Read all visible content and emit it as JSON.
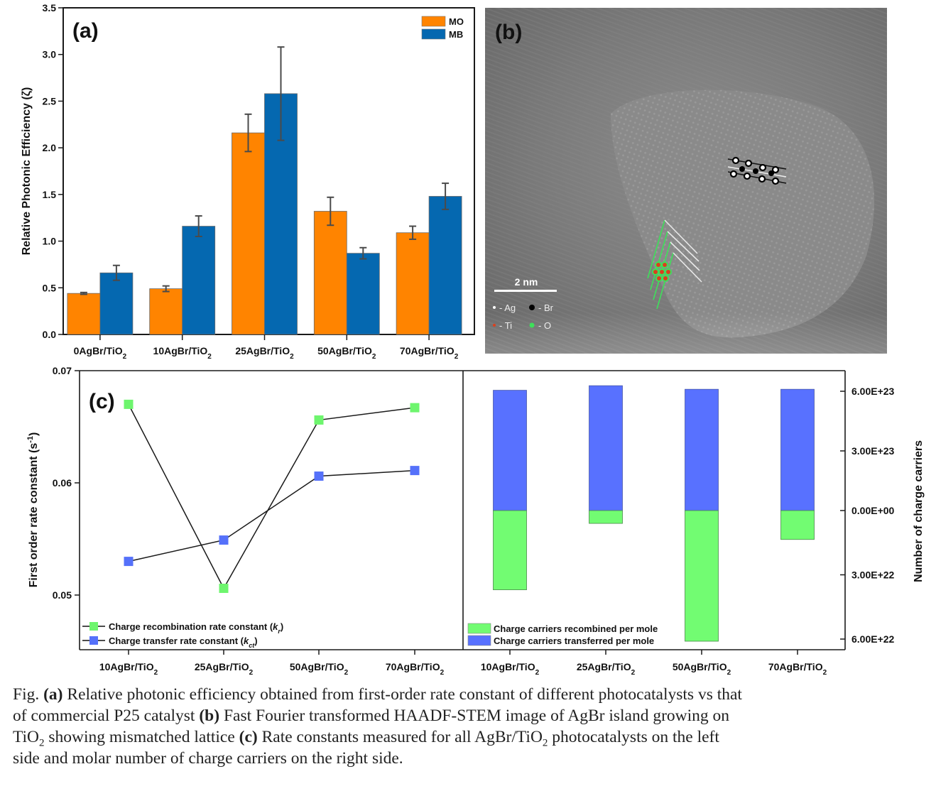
{
  "figure": {
    "panel_a_label": "(a)",
    "panel_b_label": "(b)",
    "panel_c_label": "(c)"
  },
  "panel_b": {
    "description": "Fast Fourier transformed HAADF-STEM image of AgBr island on TiO2",
    "scale_bar_label": "2 nm",
    "legend": [
      {
        "symbol": "small white dot",
        "label": "- Ag",
        "color": "#ffffff"
      },
      {
        "symbol": "black dot",
        "label": "- Br",
        "color": "#000000"
      },
      {
        "symbol": "small red dot",
        "label": "- Ti",
        "color": "#d9401e"
      },
      {
        "symbol": "green dot",
        "label": "- O",
        "color": "#3ee05a"
      }
    ]
  },
  "chart_data": [
    {
      "id": "a",
      "type": "bar",
      "title": "",
      "xlabel": "",
      "ylabel": "Relative Photonic Efficiency (ζ)",
      "categories": [
        "0AgBr/TiO₂",
        "10AgBr/TiO₂",
        "25AgBr/TiO₂",
        "50AgBr/TiO₂",
        "70AgBr/TiO₂"
      ],
      "series": [
        {
          "name": "MO",
          "color": "#ff8400",
          "values": [
            0.44,
            0.49,
            2.16,
            1.32,
            1.09
          ],
          "errors": [
            0.01,
            0.03,
            0.2,
            0.15,
            0.07
          ]
        },
        {
          "name": "MB",
          "color": "#0568b0",
          "values": [
            0.66,
            1.16,
            2.58,
            0.87,
            1.48
          ],
          "errors": [
            0.08,
            0.11,
            0.5,
            0.06,
            0.14
          ]
        }
      ],
      "ylim": [
        0,
        3.5
      ],
      "yticks": [
        "0.0",
        "0.5",
        "1.0",
        "1.5",
        "2.0",
        "2.5",
        "3.0",
        "3.5"
      ],
      "legend": "top-right",
      "grid": false
    },
    {
      "id": "c-left",
      "type": "line",
      "title": "",
      "xlabel": "",
      "ylabel": "First order rate constant (s⁻¹)",
      "categories": [
        "10AgBr/TiO₂",
        "25AgBr/TiO₂",
        "50AgBr/TiO₂",
        "70AgBr/TiO₂"
      ],
      "series": [
        {
          "name": "Charge recombination rate constant (kr)",
          "color": "#6ef56e",
          "values": [
            0.067,
            0.0506,
            0.0656,
            0.0667
          ]
        },
        {
          "name": "Charge transfer rate constant (kct)",
          "color": "#5571fa",
          "values": [
            0.053,
            0.0549,
            0.0606,
            0.0611
          ]
        }
      ],
      "ylim": [
        0.045,
        0.07
      ],
      "yticks": [
        "0.05",
        "0.06",
        "0.07"
      ],
      "legend": "bottom-left",
      "grid": false
    },
    {
      "id": "c-right",
      "type": "bar",
      "title": "",
      "xlabel": "",
      "ylabel": "Number of charge carriers",
      "categories": [
        "10AgBr/TiO₂",
        "25AgBr/TiO₂",
        "50AgBr/TiO₂",
        "70AgBr/TiO₂"
      ],
      "series": [
        {
          "name": "Charge carriers recombined per mole",
          "color": "#72fc72",
          "direction": "down",
          "values": [
            3.7e+22,
            6e+21,
            6.1e+22,
            1.35e+22
          ]
        },
        {
          "name": "Charge carriers transferred per mole",
          "color": "#5871ff",
          "direction": "up",
          "values": [
            6.05e+23,
            6.28e+23,
            6.1e+23,
            6.1e+23
          ]
        }
      ],
      "yticks_up": [
        "0.00E+00",
        "3.00E+23",
        "6.00E+23"
      ],
      "yticks_down": [
        "3.00E+22",
        "6.00E+22"
      ],
      "ylim_up": [
        0,
        6.6e+23
      ],
      "ylim_down": [
        0,
        6.6e+22
      ],
      "axis_side": "right",
      "legend": "bottom-left",
      "grid": false
    }
  ],
  "caption": {
    "lines": [
      [
        {
          "t": "Fig. "
        },
        {
          "t": "(a)",
          "b": true
        },
        {
          "t": " Relative photonic efficiency obtained from first-order rate constant of different photocatalysts vs that"
        }
      ],
      [
        {
          "t": "of commercial P25 catalyst "
        },
        {
          "t": "(b)",
          "b": true
        },
        {
          "t": " Fast Fourier transformed HAADF-STEM image of AgBr island growing on"
        }
      ],
      [
        {
          "t": "TiO"
        },
        {
          "t": "2",
          "sub": true
        },
        {
          "t": " showing mismatched lattice "
        },
        {
          "t": "(c)",
          "b": true
        },
        {
          "t": " Rate constants measured for all AgBr/TiO"
        },
        {
          "t": "2",
          "sub": true
        },
        {
          "t": " photocatalysts on the left"
        }
      ],
      [
        {
          "t": "side and molar number of charge carriers on the right side."
        }
      ]
    ]
  }
}
